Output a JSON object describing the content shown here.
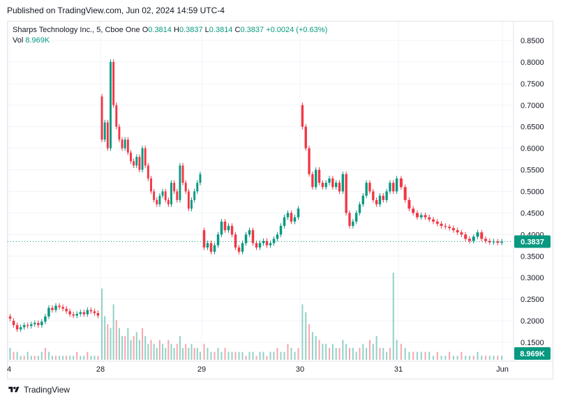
{
  "published": "Published on TradingView.com, Jun 02, 2024 14:59 UTC-4",
  "legend": {
    "symbol": "Sharps Technology Inc., 5, Cboe One",
    "o_label": "O",
    "o_value": "0.3814",
    "h_label": "H",
    "h_value": "0.3837",
    "l_label": "L",
    "l_value": "0.3814",
    "c_label": "C",
    "c_value": "0.3837",
    "change": "+0.0024 (+0.63%)",
    "vol_label": "Vol",
    "vol_value": "8.969K"
  },
  "footer": {
    "brand": "TradingView"
  },
  "colors": {
    "up": "#089981",
    "down": "#f23645",
    "grid": "#f0f3fa",
    "axis_text": "#131722"
  },
  "chart_data": {
    "type": "candlestick",
    "title": "Sharps Technology Inc., 5, Cboe One",
    "interval": "5",
    "y_axis": {
      "ticks": [
        "0.8500",
        "0.8000",
        "0.7500",
        "0.7000",
        "0.6500",
        "0.6000",
        "0.5500",
        "0.5000",
        "0.4500",
        "0.4000",
        "0.3500",
        "0.3000",
        "0.2500",
        "0.2000",
        "0.1500"
      ],
      "range": [
        0.1,
        0.86
      ],
      "position": "right"
    },
    "x_axis": {
      "ticks": [
        "4",
        "28",
        "29",
        "30",
        "31",
        "Jun"
      ]
    },
    "last_price": "0.3837",
    "last_volume": "8.969K",
    "grid": true,
    "series": [
      {
        "name": "price",
        "segment": "May 24",
        "points": [
          [
            0.21,
            0.205
          ],
          [
            0.2,
            0.19
          ],
          [
            0.19,
            0.18
          ],
          [
            0.18,
            0.185
          ],
          [
            0.185,
            0.19
          ],
          [
            0.19,
            0.188
          ],
          [
            0.188,
            0.192
          ],
          [
            0.192,
            0.195
          ],
          [
            0.195,
            0.19
          ],
          [
            0.19,
            0.198
          ],
          [
            0.198,
            0.21
          ],
          [
            0.21,
            0.23
          ],
          [
            0.23,
            0.225
          ],
          [
            0.225,
            0.235
          ],
          [
            0.235,
            0.232
          ],
          [
            0.232,
            0.228
          ],
          [
            0.228,
            0.222
          ],
          [
            0.222,
            0.215
          ],
          [
            0.215,
            0.212
          ],
          [
            0.212,
            0.216
          ],
          [
            0.216,
            0.22
          ],
          [
            0.22,
            0.215
          ],
          [
            0.215,
            0.225
          ],
          [
            0.225,
            0.222
          ],
          [
            0.222,
            0.218
          ],
          [
            0.218,
            0.212
          ]
        ]
      },
      {
        "name": "price",
        "segment": "May 28",
        "points": [
          [
            0.72,
            0.62
          ],
          [
            0.62,
            0.66
          ],
          [
            0.66,
            0.6
          ],
          [
            0.6,
            0.8
          ],
          [
            0.8,
            0.7
          ],
          [
            0.7,
            0.65
          ],
          [
            0.65,
            0.62
          ],
          [
            0.62,
            0.6
          ],
          [
            0.6,
            0.62
          ],
          [
            0.62,
            0.59
          ],
          [
            0.59,
            0.57
          ],
          [
            0.57,
            0.56
          ],
          [
            0.56,
            0.58
          ],
          [
            0.58,
            0.55
          ],
          [
            0.55,
            0.6
          ],
          [
            0.6,
            0.56
          ],
          [
            0.56,
            0.53
          ],
          [
            0.53,
            0.5
          ],
          [
            0.5,
            0.48
          ],
          [
            0.48,
            0.47
          ],
          [
            0.47,
            0.49
          ],
          [
            0.49,
            0.5
          ],
          [
            0.5,
            0.48
          ],
          [
            0.48,
            0.47
          ],
          [
            0.47,
            0.52
          ],
          [
            0.52,
            0.5
          ],
          [
            0.5,
            0.48
          ],
          [
            0.48,
            0.56
          ],
          [
            0.56,
            0.52
          ],
          [
            0.52,
            0.5
          ],
          [
            0.5,
            0.46
          ],
          [
            0.46,
            0.48
          ],
          [
            0.48,
            0.5
          ],
          [
            0.5,
            0.52
          ],
          [
            0.52,
            0.54
          ]
        ]
      },
      {
        "name": "price",
        "segment": "May 29",
        "points": [
          [
            0.41,
            0.37
          ],
          [
            0.37,
            0.38
          ],
          [
            0.38,
            0.36
          ],
          [
            0.36,
            0.375
          ],
          [
            0.375,
            0.4
          ],
          [
            0.4,
            0.43
          ],
          [
            0.43,
            0.41
          ],
          [
            0.41,
            0.42
          ],
          [
            0.42,
            0.4
          ],
          [
            0.4,
            0.37
          ],
          [
            0.37,
            0.36
          ],
          [
            0.36,
            0.38
          ],
          [
            0.38,
            0.4
          ],
          [
            0.4,
            0.41
          ],
          [
            0.41,
            0.38
          ],
          [
            0.38,
            0.37
          ],
          [
            0.37,
            0.38
          ],
          [
            0.38,
            0.385
          ],
          [
            0.385,
            0.375
          ],
          [
            0.375,
            0.38
          ],
          [
            0.38,
            0.39
          ],
          [
            0.39,
            0.4
          ],
          [
            0.4,
            0.42
          ],
          [
            0.42,
            0.44
          ],
          [
            0.44,
            0.45
          ],
          [
            0.45,
            0.43
          ],
          [
            0.43,
            0.44
          ],
          [
            0.44,
            0.46
          ]
        ]
      },
      {
        "name": "price",
        "segment": "May 30",
        "points": [
          [
            0.7,
            0.65
          ],
          [
            0.65,
            0.6
          ],
          [
            0.6,
            0.54
          ],
          [
            0.54,
            0.51
          ],
          [
            0.51,
            0.55
          ],
          [
            0.55,
            0.52
          ],
          [
            0.52,
            0.51
          ],
          [
            0.51,
            0.52
          ],
          [
            0.52,
            0.53
          ],
          [
            0.53,
            0.51
          ],
          [
            0.51,
            0.52
          ],
          [
            0.52,
            0.5
          ],
          [
            0.5,
            0.54
          ],
          [
            0.54,
            0.45
          ],
          [
            0.45,
            0.42
          ],
          [
            0.42,
            0.43
          ],
          [
            0.43,
            0.45
          ],
          [
            0.45,
            0.47
          ],
          [
            0.47,
            0.49
          ],
          [
            0.49,
            0.52
          ],
          [
            0.52,
            0.5
          ],
          [
            0.5,
            0.48
          ],
          [
            0.48,
            0.47
          ],
          [
            0.47,
            0.49
          ],
          [
            0.49,
            0.48
          ],
          [
            0.48,
            0.5
          ],
          [
            0.5,
            0.52
          ],
          [
            0.52,
            0.5
          ],
          [
            0.5,
            0.53
          ]
        ]
      },
      {
        "name": "price",
        "segment": "May 31",
        "points": [
          [
            0.53,
            0.51
          ],
          [
            0.51,
            0.48
          ],
          [
            0.48,
            0.46
          ],
          [
            0.46,
            0.45
          ],
          [
            0.45,
            0.44
          ],
          [
            0.44,
            0.445
          ],
          [
            0.445,
            0.44
          ],
          [
            0.44,
            0.435
          ],
          [
            0.435,
            0.43
          ],
          [
            0.43,
            0.425
          ],
          [
            0.425,
            0.42
          ],
          [
            0.42,
            0.418
          ],
          [
            0.418,
            0.415
          ],
          [
            0.415,
            0.41
          ],
          [
            0.41,
            0.405
          ],
          [
            0.405,
            0.4
          ],
          [
            0.4,
            0.39
          ],
          [
            0.39,
            0.385
          ],
          [
            0.385,
            0.395
          ],
          [
            0.395,
            0.405
          ],
          [
            0.405,
            0.39
          ],
          [
            0.39,
            0.385
          ],
          [
            0.385,
            0.382
          ],
          [
            0.382,
            0.384
          ],
          [
            0.384,
            0.381
          ],
          [
            0.381,
            0.3837
          ]
        ]
      }
    ],
    "volume": [
      3,
      2,
      2,
      1,
      1,
      2,
      1,
      1,
      1,
      2,
      3,
      2,
      1,
      1,
      1,
      1,
      1,
      1,
      1,
      2,
      1,
      1,
      2,
      1,
      1,
      1,
      18,
      11,
      9,
      8,
      14,
      10,
      8,
      6,
      6,
      8,
      5,
      6,
      7,
      5,
      8,
      6,
      4,
      5,
      4,
      3,
      5,
      4,
      3,
      5,
      4,
      3,
      4,
      6,
      3,
      4,
      3,
      4,
      3,
      3,
      2,
      4,
      3,
      2,
      2,
      3,
      2,
      3,
      2,
      2,
      2,
      2,
      2,
      1,
      2,
      2,
      1,
      2,
      2,
      1,
      2,
      2,
      3,
      2,
      2,
      4,
      3,
      2,
      3,
      14,
      12,
      9,
      7,
      6,
      5,
      4,
      4,
      3,
      4,
      3,
      3,
      5,
      4,
      3,
      3,
      2,
      3,
      4,
      3,
      5,
      4,
      6,
      3,
      3,
      2,
      3,
      22,
      5,
      4,
      3,
      2,
      2,
      2,
      2,
      2,
      2,
      1,
      2,
      1,
      1,
      2,
      1,
      1,
      2,
      1,
      1,
      1,
      2,
      1,
      1,
      1,
      1,
      1,
      1
    ]
  }
}
